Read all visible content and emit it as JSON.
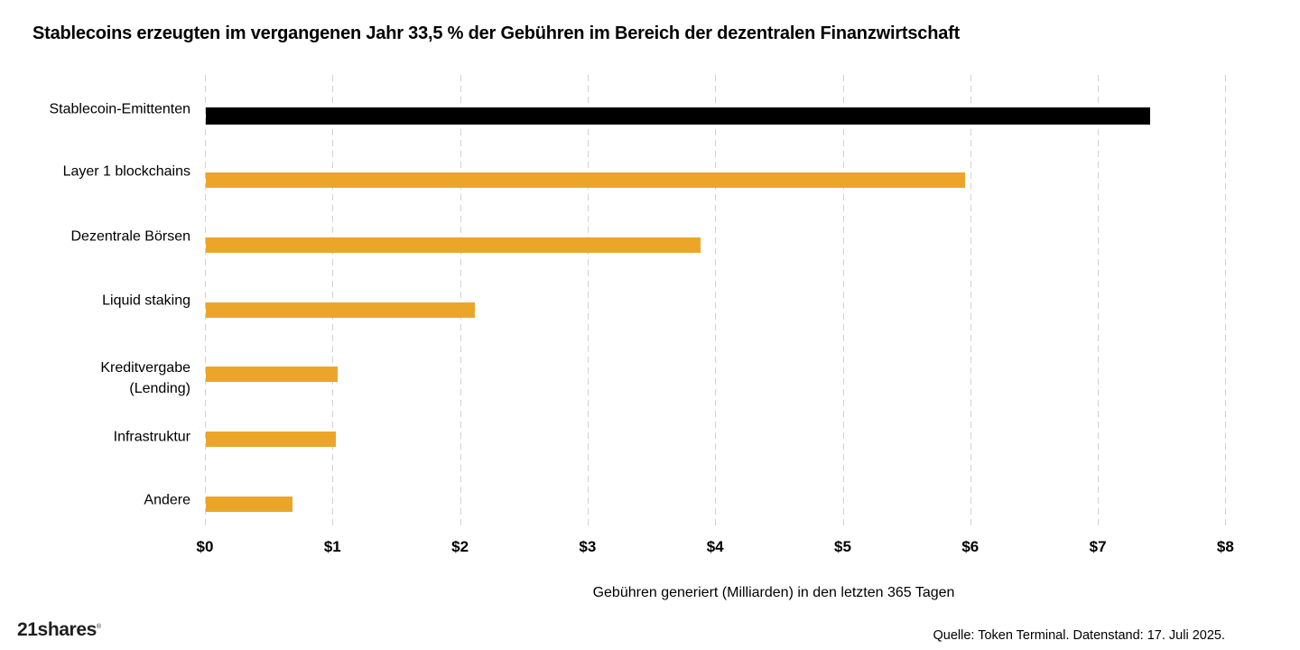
{
  "title": "Stablecoins erzeugten im vergangenen Jahr 33,5 % der Gebühren im Bereich der dezentralen Finanzwirtschaft",
  "chart_data": {
    "type": "bar",
    "orientation": "horizontal",
    "title": "Stablecoins erzeugten im vergangenen Jahr 33,5 % der Gebühren im Bereich der dezentralen Finanzwirtschaft",
    "categories": [
      "Stablecoin-Emittenten",
      "Layer 1 blockchains",
      "Dezentrale Börsen",
      "Liquid staking",
      "Kreditvergabe\n(Lending)",
      "Infrastruktur",
      "Andere"
    ],
    "values": [
      7.4,
      5.95,
      3.88,
      2.11,
      1.03,
      1.02,
      0.68
    ],
    "xlabel": "Gebühren generiert (Milliarden) in den letzten 365 Tagen",
    "xlim": [
      0,
      8
    ],
    "x_tick_labels": [
      "$0",
      "$1",
      "$2",
      "$3",
      "$4",
      "$5",
      "$6",
      "$7",
      "$8"
    ],
    "grid": "vertical-dashed",
    "legend": "none",
    "bar_colors": [
      "#000000",
      "#EBA62A",
      "#EBA62A",
      "#EBA62A",
      "#EBA62A",
      "#EBA62A",
      "#EBA62A"
    ],
    "highlight_color": "#000000",
    "default_color": "#EBA62A",
    "grid_color": "#d2d2d2"
  },
  "footer": {
    "logo": "21shares",
    "logo_mark": "®",
    "source": "Quelle: Token Terminal. Datenstand: 17. Juli 2025."
  }
}
